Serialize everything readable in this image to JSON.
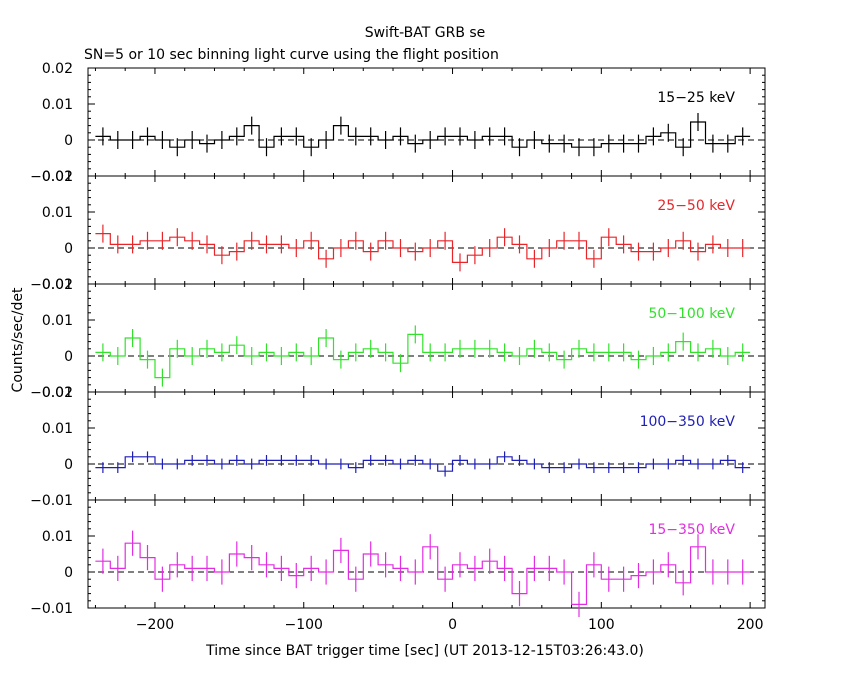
{
  "title": "Swift-BAT GRB se",
  "subtitle": "SN=5 or 10 sec binning light curve using the flight position",
  "ylabel": "Counts/sec/det",
  "xlabel": "Time since BAT trigger time [sec] (UT 2013-12-15T03:26:43.0)",
  "colors": {
    "frame": "#000000",
    "band_15_25": "#000000",
    "band_25_50": "#e8262a",
    "band_50_100": "#33e12d",
    "band_100_350": "#1f1fb4",
    "band_15_350": "#e22ee2"
  },
  "chart_data": {
    "type": "line",
    "step": true,
    "x_range": [
      -245,
      210
    ],
    "x_ticks": [
      -200,
      -100,
      0,
      100,
      200
    ],
    "x_tick_labels": [
      "−200",
      "−100",
      "0",
      "100",
      "200"
    ],
    "bin_edges": [
      -240,
      -230,
      -220,
      -210,
      -200,
      -190,
      -180,
      -170,
      -160,
      -150,
      -140,
      -130,
      -120,
      -110,
      -100,
      -90,
      -80,
      -70,
      -60,
      -50,
      -40,
      -30,
      -20,
      -10,
      0,
      10,
      20,
      30,
      40,
      50,
      60,
      70,
      80,
      90,
      100,
      110,
      120,
      130,
      140,
      150,
      160,
      170,
      180,
      190,
      200
    ],
    "panels": [
      {
        "band": "15−25 keV",
        "color_key": "band_15_25",
        "ylim": [
          -0.01,
          0.02
        ],
        "y_ticks": [
          0.02,
          0.01,
          0,
          -0.01
        ],
        "y_tick_labels": [
          "0.02",
          "0.01",
          "0",
          "−0.01"
        ],
        "values": [
          0.001,
          0.0,
          0.0,
          0.001,
          0.0,
          -0.002,
          0.0,
          -0.001,
          0.0,
          0.001,
          0.004,
          -0.002,
          0.001,
          0.001,
          -0.002,
          0.0,
          0.004,
          0.001,
          0.001,
          0.0,
          0.001,
          -0.001,
          0.0,
          0.001,
          0.001,
          0.0,
          0.001,
          0.001,
          -0.002,
          0.0,
          -0.001,
          -0.001,
          -0.002,
          -0.002,
          -0.001,
          -0.001,
          -0.001,
          0.001,
          0.002,
          -0.002,
          0.005,
          -0.001,
          -0.001,
          0.001
        ],
        "errors": [
          0.0025,
          0.0025,
          0.0025,
          0.0025,
          0.0025,
          0.0025,
          0.0025,
          0.0025,
          0.0025,
          0.0025,
          0.0025,
          0.0025,
          0.0025,
          0.0025,
          0.0025,
          0.0025,
          0.0025,
          0.0025,
          0.0025,
          0.0025,
          0.0025,
          0.0025,
          0.0025,
          0.0025,
          0.0025,
          0.0025,
          0.0025,
          0.0025,
          0.0025,
          0.0025,
          0.0025,
          0.0025,
          0.0025,
          0.0025,
          0.0025,
          0.0025,
          0.0025,
          0.0025,
          0.0025,
          0.0025,
          0.0025,
          0.0025,
          0.0025,
          0.0025
        ]
      },
      {
        "band": "25−50 keV",
        "color_key": "band_25_50",
        "ylim": [
          -0.01,
          0.02
        ],
        "y_ticks": [
          0.02,
          0.01,
          0,
          -0.01
        ],
        "y_tick_labels": [
          "0.02",
          "0.01",
          "0",
          "−0.01"
        ],
        "values": [
          0.004,
          0.001,
          0.001,
          0.002,
          0.002,
          0.003,
          0.002,
          0.001,
          -0.002,
          -0.001,
          0.002,
          0.001,
          0.001,
          0.0,
          0.002,
          -0.003,
          0.0,
          0.002,
          -0.001,
          0.002,
          0.0,
          -0.001,
          0.0,
          0.002,
          -0.004,
          -0.002,
          0.0,
          0.003,
          0.001,
          -0.003,
          0.0,
          0.002,
          0.002,
          -0.003,
          0.003,
          0.001,
          -0.001,
          -0.001,
          0.0,
          0.002,
          -0.001,
          0.001,
          0.0,
          0.0
        ],
        "errors": [
          0.0025,
          0.0025,
          0.0025,
          0.0025,
          0.0025,
          0.0025,
          0.0025,
          0.0025,
          0.0025,
          0.0025,
          0.0025,
          0.0025,
          0.0025,
          0.0025,
          0.0025,
          0.0025,
          0.0025,
          0.0025,
          0.0025,
          0.0025,
          0.0025,
          0.0025,
          0.0025,
          0.0025,
          0.0025,
          0.0025,
          0.0025,
          0.0025,
          0.0025,
          0.0025,
          0.0025,
          0.0025,
          0.0025,
          0.0025,
          0.0025,
          0.0025,
          0.0025,
          0.0025,
          0.0025,
          0.0025,
          0.0025,
          0.0025,
          0.0025,
          0.0025
        ]
      },
      {
        "band": "50−100 keV",
        "color_key": "band_50_100",
        "ylim": [
          -0.01,
          0.02
        ],
        "y_ticks": [
          0.02,
          0.01,
          0,
          -0.01
        ],
        "y_tick_labels": [
          "0.02",
          "0.01",
          "0",
          "−0.01"
        ],
        "values": [
          0.001,
          0.0,
          0.005,
          -0.001,
          -0.006,
          0.002,
          0.0,
          0.002,
          0.001,
          0.003,
          0.0,
          0.001,
          0.0,
          0.001,
          0.0,
          0.005,
          -0.001,
          0.001,
          0.002,
          0.001,
          -0.002,
          0.006,
          0.001,
          0.001,
          0.002,
          0.002,
          0.002,
          0.001,
          0.0,
          0.002,
          0.001,
          -0.001,
          0.002,
          0.001,
          0.001,
          0.001,
          -0.001,
          0.0,
          0.001,
          0.004,
          0.001,
          0.002,
          0.0,
          0.001
        ],
        "errors": [
          0.0025,
          0.0025,
          0.0025,
          0.0025,
          0.0025,
          0.0025,
          0.0025,
          0.0025,
          0.0025,
          0.0025,
          0.0025,
          0.0025,
          0.0025,
          0.0025,
          0.0025,
          0.0025,
          0.0025,
          0.0025,
          0.0025,
          0.0025,
          0.0025,
          0.0025,
          0.0025,
          0.0025,
          0.0025,
          0.0025,
          0.0025,
          0.0025,
          0.0025,
          0.0025,
          0.0025,
          0.0025,
          0.0025,
          0.0025,
          0.0025,
          0.0025,
          0.0025,
          0.0025,
          0.0025,
          0.0025,
          0.0025,
          0.0025,
          0.0025,
          0.0025
        ]
      },
      {
        "band": "100−350 keV",
        "color_key": "band_100_350",
        "ylim": [
          -0.01,
          0.02
        ],
        "y_ticks": [
          0.02,
          0.01,
          0,
          -0.01
        ],
        "y_tick_labels": [
          "0.02",
          "0.01",
          "0",
          "−0.01"
        ],
        "values": [
          -0.001,
          -0.001,
          0.002,
          0.002,
          0.0,
          0.0,
          0.001,
          0.001,
          0.0,
          0.001,
          0.0,
          0.001,
          0.001,
          0.001,
          0.001,
          0.0,
          0.0,
          -0.001,
          0.001,
          0.001,
          0.0,
          0.001,
          0.0,
          -0.002,
          0.001,
          0.0,
          0.0,
          0.002,
          0.001,
          0.0,
          -0.001,
          -0.001,
          0.0,
          -0.001,
          -0.001,
          -0.001,
          -0.001,
          0.0,
          0.0,
          0.001,
          0.0,
          0.0,
          0.001,
          -0.001
        ],
        "errors": [
          0.0015,
          0.0015,
          0.0015,
          0.0015,
          0.0015,
          0.0015,
          0.0015,
          0.0015,
          0.0015,
          0.0015,
          0.0015,
          0.0015,
          0.0015,
          0.0015,
          0.0015,
          0.0015,
          0.0015,
          0.0015,
          0.0015,
          0.0015,
          0.0015,
          0.0015,
          0.0015,
          0.0015,
          0.0015,
          0.0015,
          0.0015,
          0.0015,
          0.0015,
          0.0015,
          0.0015,
          0.0015,
          0.0015,
          0.0015,
          0.0015,
          0.0015,
          0.0015,
          0.0015,
          0.0015,
          0.0015,
          0.0015,
          0.0015,
          0.0015,
          0.0015
        ]
      },
      {
        "band": "15−350 keV",
        "color_key": "band_15_350",
        "ylim": [
          -0.01,
          0.02
        ],
        "y_ticks": [
          0.01,
          0,
          -0.01
        ],
        "y_tick_labels": [
          "0.01",
          "0",
          "−0.01"
        ],
        "values": [
          0.003,
          0.001,
          0.008,
          0.004,
          -0.002,
          0.002,
          0.001,
          0.001,
          0.0,
          0.005,
          0.004,
          0.002,
          0.001,
          -0.001,
          0.001,
          0.0,
          0.006,
          -0.002,
          0.005,
          0.002,
          0.001,
          0.0,
          0.007,
          -0.002,
          0.002,
          0.001,
          0.003,
          0.001,
          -0.006,
          0.001,
          0.001,
          0.0,
          -0.009,
          0.002,
          -0.002,
          -0.002,
          -0.001,
          0.0,
          0.002,
          -0.003,
          0.007,
          0.0,
          0.0,
          0.0
        ],
        "errors": [
          0.0035,
          0.0035,
          0.0035,
          0.0035,
          0.0035,
          0.0035,
          0.0035,
          0.0035,
          0.0035,
          0.0035,
          0.0035,
          0.0035,
          0.0035,
          0.0035,
          0.0035,
          0.0035,
          0.0035,
          0.0035,
          0.0035,
          0.0035,
          0.0035,
          0.0035,
          0.0035,
          0.0035,
          0.0035,
          0.0035,
          0.0035,
          0.0035,
          0.0035,
          0.0035,
          0.0035,
          0.0035,
          0.0035,
          0.0035,
          0.0035,
          0.0035,
          0.0035,
          0.0035,
          0.0035,
          0.0035,
          0.0035,
          0.0035,
          0.0035,
          0.0035
        ]
      }
    ]
  }
}
